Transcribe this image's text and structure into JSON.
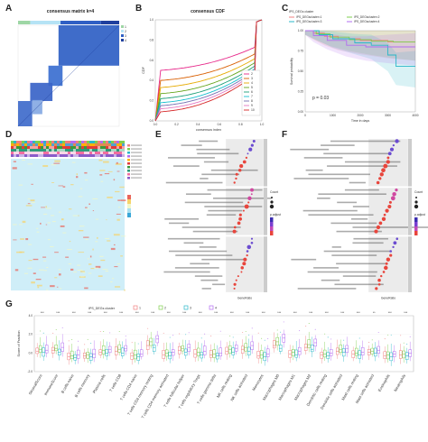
{
  "panels": {
    "a": {
      "letter": "A",
      "title": "consensus matrix k=4",
      "legend": [
        "1",
        "2",
        "3",
        "4"
      ]
    },
    "b": {
      "letter": "B",
      "title": "consensus CDF",
      "xlabel": "consensus index",
      "ylabel": "CDF",
      "legend": [
        "2",
        "3",
        "4",
        "5",
        "6",
        "7",
        "8",
        "9",
        "10"
      ]
    },
    "c": {
      "letter": "C",
      "legend_title": "IPS_DEGs cluster",
      "legend": [
        "IPS_DEGscluster=1",
        "IPS_DEGscluster=2",
        "IPS_DEGscluster=3",
        "IPS_DEGscluster=4"
      ],
      "pvalue": "p = 0.03",
      "xlabel": "Time in days",
      "ylabel": "Survival probability"
    },
    "d": {
      "letter": "D"
    },
    "e": {
      "letter": "E",
      "xlabel": "GeneRatio",
      "legend_count": "Count",
      "legend_padj": "p.adjust"
    },
    "f": {
      "letter": "F",
      "xlabel": "GeneRatio",
      "legend_count": "Count",
      "legend_padj": "p.adjust"
    },
    "g": {
      "letter": "G",
      "legend_title": "IPS_DEGs cluster",
      "legend": [
        "1",
        "2",
        "3",
        "4"
      ],
      "ylabel": "Score of Fraction"
    }
  },
  "colors": {
    "blue": "#2f5fc4",
    "dark_blue": "#1f3f9e",
    "cluster1": "#f08080",
    "cluster2": "#7fcf4f",
    "cluster3": "#2ab7c8",
    "cluster4": "#b26cf0"
  },
  "chart_data": [
    {
      "type": "heatmap",
      "title": "consensus matrix k=4",
      "legend": [
        "1",
        "2",
        "3",
        "4"
      ]
    },
    {
      "type": "line",
      "title": "consensus CDF",
      "xlabel": "consensus index",
      "ylabel": "CDF",
      "xlim": [
        0,
        1
      ],
      "ylim": [
        0,
        1
      ],
      "x_ticks": [
        "0.0",
        "0.2",
        "0.4",
        "0.6",
        "0.8",
        "1.0"
      ],
      "y_ticks": [
        "0.0",
        "0.2",
        "0.4",
        "0.6",
        "0.8",
        "1.0"
      ],
      "series": [
        {
          "name": "2",
          "color": "#e7298a",
          "low_plateau": 0.5
        },
        {
          "name": "3",
          "color": "#d95f02",
          "low_plateau": 0.4
        },
        {
          "name": "4",
          "color": "#e6ab02",
          "low_plateau": 0.33
        },
        {
          "name": "5",
          "color": "#66a61e",
          "low_plateau": 0.27
        },
        {
          "name": "6",
          "color": "#1b9e77",
          "low_plateau": 0.22
        },
        {
          "name": "7",
          "color": "#17becf",
          "low_plateau": 0.18
        },
        {
          "name": "8",
          "color": "#7570b3",
          "low_plateau": 0.15
        },
        {
          "name": "9",
          "color": "#e377c2",
          "low_plateau": 0.12
        },
        {
          "name": "10",
          "color": "#d62728",
          "low_plateau": 0.09
        }
      ]
    },
    {
      "type": "line",
      "xlabel": "Time in days",
      "ylabel": "Survival probability",
      "pvalue": "p = 0.03",
      "xlim": [
        0,
        4000
      ],
      "ylim": [
        0,
        1
      ],
      "x_ticks": [
        "0",
        "1000",
        "2000",
        "3000",
        "4000"
      ],
      "y_ticks": [
        "0.00",
        "0.25",
        "0.50",
        "0.75",
        "1.00"
      ],
      "series": [
        {
          "name": "IPS_DEGscluster=1",
          "color": "#f08080",
          "x": [
            0,
            300,
            700,
            1200,
            2000,
            3000,
            4000
          ],
          "y": [
            1.0,
            0.97,
            0.93,
            0.9,
            0.88,
            0.86,
            0.86
          ]
        },
        {
          "name": "IPS_DEGscluster=2",
          "color": "#7fcf4f",
          "x": [
            0,
            400,
            900,
            1600,
            2400,
            3200,
            4000
          ],
          "y": [
            1.0,
            0.96,
            0.92,
            0.89,
            0.87,
            0.86,
            0.86
          ]
        },
        {
          "name": "IPS_DEGscluster=3",
          "color": "#2ab7c8",
          "x": [
            0,
            500,
            1000,
            1800,
            2400,
            3000,
            3300,
            4000
          ],
          "y": [
            1.0,
            0.95,
            0.9,
            0.85,
            0.82,
            0.7,
            0.56,
            0.56
          ]
        },
        {
          "name": "IPS_DEGscluster=4",
          "color": "#b26cf0",
          "x": [
            0,
            300,
            800,
            1500,
            2200,
            3000,
            4000
          ],
          "y": [
            1.0,
            0.94,
            0.88,
            0.82,
            0.8,
            0.8,
            0.8
          ]
        }
      ]
    },
    {
      "type": "box",
      "ylabel": "Score of Fraction",
      "ylim": [
        -2,
        4
      ],
      "y_ticks": [
        "-2.0",
        "0.0",
        "2.0",
        "4.0"
      ],
      "categories": [
        "StromalScore",
        "ImmuneScore",
        "B.cells.naive",
        "B.cells.memory",
        "Plasma.cells",
        "T.cells.CD8",
        "T.cells.CD4.naive",
        "T.cells.CD4.memory.resting",
        "T.cells.CD4.memory.activated",
        "T.cells.follicular.helper",
        "T.cells.regulatory..Tregs.",
        "T.cells.gamma.delta",
        "NK.cells.resting",
        "NK.cells.activated",
        "Monocytes",
        "Macrophages.M0",
        "Macrophages.M1",
        "Macrophages.M2",
        "Dendritic.cells.resting",
        "Dendritic.cells.activated",
        "Mast.cells.resting",
        "Mast.cells.activated",
        "Eosinophils",
        "Neutrophils"
      ],
      "significance": [
        "***",
        "***",
        "***",
        "***",
        "***",
        "***",
        "***",
        "***",
        "***",
        "***",
        "***",
        "***",
        "***",
        "***",
        "***",
        "***",
        "***",
        "***",
        "***",
        "***",
        "***",
        "**",
        "***",
        "***"
      ],
      "series": [
        {
          "name": "1",
          "color": "#f08080",
          "medians": [
            0.2,
            0.3,
            -0.4,
            -0.3,
            0.1,
            0.2,
            -0.3,
            0.8,
            -0.2,
            0.3,
            -0.1,
            -0.2,
            0.2,
            0.4,
            -0.3,
            0.8,
            -0.1,
            0.6,
            -0.2,
            0.2,
            -0.1,
            0.1,
            -0.3,
            -0.2
          ]
        },
        {
          "name": "2",
          "color": "#7fcf4f",
          "medians": [
            0.4,
            0.5,
            -0.3,
            -0.2,
            0.3,
            0.4,
            -0.2,
            1.2,
            0.0,
            0.5,
            0.1,
            -0.1,
            0.4,
            0.6,
            -0.2,
            1.2,
            0.1,
            0.9,
            -0.1,
            0.4,
            0.0,
            0.2,
            -0.2,
            -0.1
          ]
        },
        {
          "name": "3",
          "color": "#2ab7c8",
          "medians": [
            0.1,
            0.1,
            -0.5,
            -0.4,
            0.0,
            0.0,
            -0.4,
            0.6,
            -0.3,
            0.1,
            -0.2,
            -0.3,
            0.1,
            0.2,
            -0.4,
            0.5,
            -0.2,
            0.4,
            -0.3,
            0.1,
            -0.2,
            0.0,
            -0.4,
            -0.3
          ]
        },
        {
          "name": "4",
          "color": "#b26cf0",
          "medians": [
            0.3,
            0.6,
            -0.2,
            -0.1,
            0.4,
            0.5,
            -0.1,
            1.5,
            0.1,
            0.6,
            0.2,
            0.0,
            0.5,
            0.8,
            -0.1,
            1.6,
            0.2,
            1.1,
            0.0,
            0.5,
            0.1,
            0.3,
            -0.1,
            0.0
          ]
        }
      ]
    }
  ]
}
